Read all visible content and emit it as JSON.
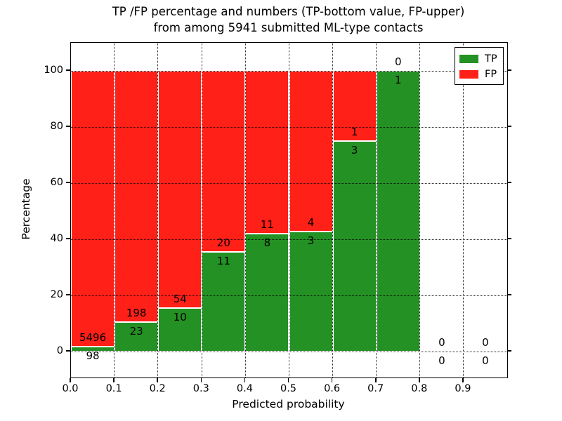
{
  "title": {
    "line1": "TP /FP percentage and numbers (TP-bottom value, FP-upper)",
    "line2": "from among 5941 submitted ML-type contacts"
  },
  "colors": {
    "tp_green": "#239123",
    "fp_red": "#ff2018",
    "background": "#ffffff",
    "grid": "#000000"
  },
  "chart_data": {
    "type": "bar",
    "stacked": true,
    "title": "TP /FP percentage and numbers (TP-bottom value, FP-upper)\nfrom among 5941 submitted ML-type contacts",
    "xlabel": "Predicted probability",
    "ylabel": "Percentage",
    "xlim": [
      0.0,
      1.0
    ],
    "ylim": [
      -9.25,
      110
    ],
    "grid": true,
    "bin_width": 0.1,
    "total_contacts": 5941,
    "x_tick_labels": [
      "0.0",
      "0.1",
      "0.2",
      "0.3",
      "0.4",
      "0.5",
      "0.6",
      "0.7",
      "0.8",
      "0.9"
    ],
    "y_tick_values": [
      0,
      20,
      40,
      60,
      80,
      100
    ],
    "legend": {
      "position": "upper right",
      "entries": [
        {
          "label": "TP",
          "color": "#239123"
        },
        {
          "label": "FP",
          "color": "#ff2018"
        }
      ]
    },
    "bins": [
      {
        "range": "0.0-0.1",
        "tp": 98,
        "fp": 5496,
        "tp_pct": 1.75
      },
      {
        "range": "0.1-0.2",
        "tp": 23,
        "fp": 198,
        "tp_pct": 10.41
      },
      {
        "range": "0.2-0.3",
        "tp": 10,
        "fp": 54,
        "tp_pct": 15.63
      },
      {
        "range": "0.3-0.4",
        "tp": 11,
        "fp": 20,
        "tp_pct": 35.48
      },
      {
        "range": "0.4-0.5",
        "tp": 8,
        "fp": 11,
        "tp_pct": 42.11
      },
      {
        "range": "0.5-0.6",
        "tp": 3,
        "fp": 4,
        "tp_pct": 42.86
      },
      {
        "range": "0.6-0.7",
        "tp": 3,
        "fp": 1,
        "tp_pct": 75.0
      },
      {
        "range": "0.7-0.8",
        "tp": 1,
        "fp": 0,
        "tp_pct": 100.0
      },
      {
        "range": "0.8-0.9",
        "tp": 0,
        "fp": 0,
        "tp_pct": 0
      },
      {
        "range": "0.9-1.0",
        "tp": 0,
        "fp": 0,
        "tp_pct": 0
      }
    ]
  }
}
